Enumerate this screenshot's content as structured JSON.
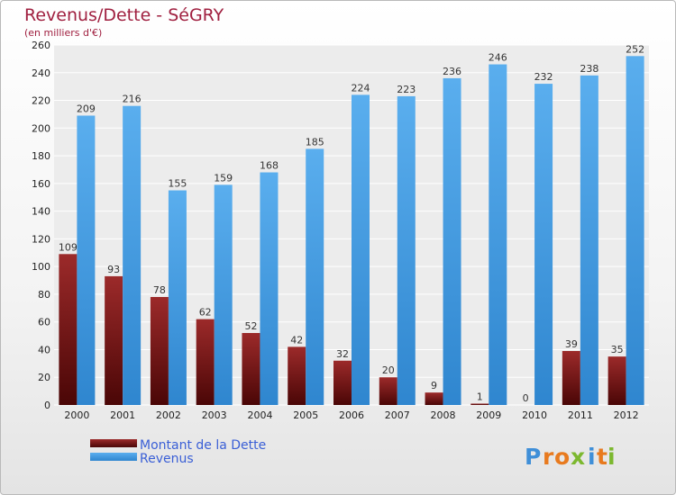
{
  "chart_data": {
    "type": "bar",
    "title": "Revenus/Dette - SéGRY",
    "subtitle": "(en milliers d'€)",
    "categories": [
      "2000",
      "2001",
      "2002",
      "2003",
      "2004",
      "2005",
      "2006",
      "2007",
      "2008",
      "2009",
      "2010",
      "2011",
      "2012"
    ],
    "series": [
      {
        "name": "Montant de la Dette",
        "color": "#8b1a1a",
        "values": [
          109,
          93,
          78,
          62,
          52,
          42,
          32,
          20,
          9,
          1,
          0,
          39,
          35
        ]
      },
      {
        "name": "Revenus",
        "color": "#3e9be3",
        "values": [
          209,
          216,
          155,
          159,
          168,
          185,
          224,
          223,
          236,
          246,
          232,
          238,
          252
        ]
      }
    ],
    "ylim": [
      0,
      260
    ],
    "yticks": [
      0,
      20,
      40,
      60,
      80,
      100,
      120,
      140,
      160,
      180,
      200,
      220,
      240,
      260
    ],
    "grid": true,
    "legend": "bottom-left"
  },
  "brand": {
    "letters": [
      "P",
      "r",
      "o",
      "x",
      "i",
      "t",
      "i"
    ],
    "colors": [
      "#3f8fd8",
      "#e87a1e",
      "#e87a1e",
      "#7cb82f",
      "#3f8fd8",
      "#e87a1e",
      "#7cb82f"
    ]
  }
}
